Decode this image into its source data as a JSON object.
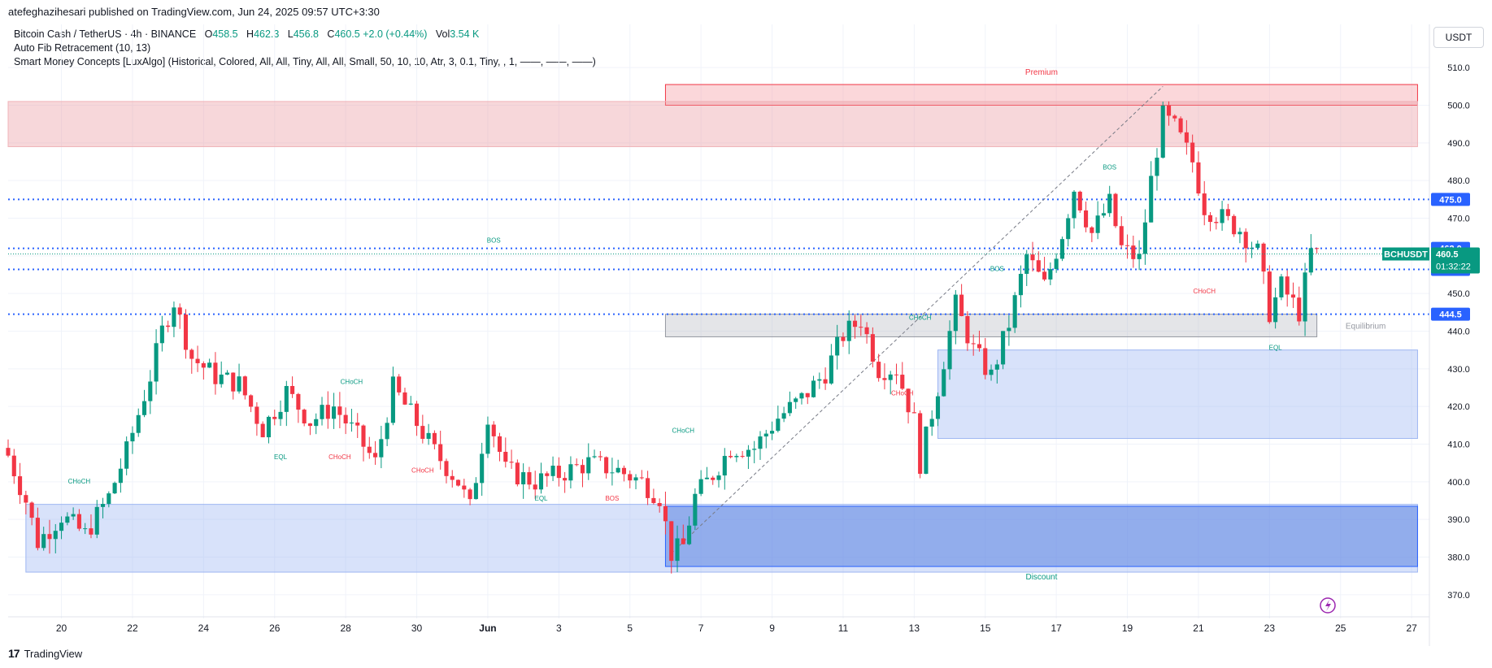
{
  "header": {
    "published_line": "atefeghazihesari published on TradingView.com, Jun 24, 2025 09:57 UTC+3:30"
  },
  "legend": {
    "symbol": "Bitcoin Cash / TetherUS · 4h · BINANCE",
    "open_label": "O",
    "open": "458.5",
    "high_label": "H",
    "high": "462.3",
    "low_label": "L",
    "low": "456.8",
    "close_label": "C",
    "close": "460.5",
    "change": "+2.0 (+0.44%)",
    "volume_label": "Vol",
    "volume": "3.54 K",
    "indicator_1": "Auto Fib Retracement (10, 13)",
    "indicator_2": "Smart Money Concepts [LuxAlgo] (Historical, Colored, All, All, Tiny, All, All, Small, 50, 10, 10, Atr, 3, 0.1, Tiny, , 1, ——, ——, ——)"
  },
  "currency_button": "USDT",
  "brand": {
    "logo": "17",
    "name": "TradingView"
  },
  "colors": {
    "up": "#089981",
    "down": "#f23645",
    "blue_line": "#2962ff",
    "premium_zone": "#f7c9cd",
    "discount_zone": "#c5d3f6",
    "grid": "#f0f3fa"
  },
  "chart_data": {
    "type": "candlestick",
    "symbol": "BCHUSDT",
    "timeframe": "4h",
    "ylim": [
      365,
      515
    ],
    "x_range_days": [
      "2025-05-18T12:00",
      "2025-06-27T12:00"
    ],
    "y_ticks": [
      "370.0",
      "380.0",
      "390.0",
      "400.0",
      "410.0",
      "420.0",
      "430.0",
      "440.0",
      "450.0",
      "460.0",
      "470.0",
      "480.0",
      "490.0",
      "500.0",
      "510.0"
    ],
    "x_ticks": [
      {
        "label": "20",
        "date": "2025-05-20"
      },
      {
        "label": "22",
        "date": "2025-05-22"
      },
      {
        "label": "24",
        "date": "2025-05-24"
      },
      {
        "label": "26",
        "date": "2025-05-26"
      },
      {
        "label": "28",
        "date": "2025-05-28"
      },
      {
        "label": "30",
        "date": "2025-05-30"
      },
      {
        "label": "Jun",
        "date": "2025-06-01"
      },
      {
        "label": "3",
        "date": "2025-06-03"
      },
      {
        "label": "5",
        "date": "2025-06-05"
      },
      {
        "label": "7",
        "date": "2025-06-07"
      },
      {
        "label": "9",
        "date": "2025-06-09"
      },
      {
        "label": "11",
        "date": "2025-06-11"
      },
      {
        "label": "13",
        "date": "2025-06-13"
      },
      {
        "label": "15",
        "date": "2025-06-15"
      },
      {
        "label": "17",
        "date": "2025-06-17"
      },
      {
        "label": "19",
        "date": "2025-06-19"
      },
      {
        "label": "21",
        "date": "2025-06-21"
      },
      {
        "label": "23",
        "date": "2025-06-23"
      },
      {
        "label": "25",
        "date": "2025-06-25"
      },
      {
        "label": "27",
        "date": "2025-06-27"
      }
    ],
    "close_path": [
      {
        "date": "2025-05-18T12:00",
        "close": 407
      },
      {
        "date": "2025-05-19T00:00",
        "close": 395
      },
      {
        "date": "2025-05-19T08:00",
        "close": 384
      },
      {
        "date": "2025-05-20T00:00",
        "close": 391
      },
      {
        "date": "2025-05-20T16:00",
        "close": 386
      },
      {
        "date": "2025-05-21T08:00",
        "close": 396
      },
      {
        "date": "2025-05-21T20:00",
        "close": 408
      },
      {
        "date": "2025-05-22T12:00",
        "close": 428
      },
      {
        "date": "2025-05-22T20:00",
        "close": 440
      },
      {
        "date": "2025-05-23T04:00",
        "close": 448
      },
      {
        "date": "2025-05-23T16:00",
        "close": 433
      },
      {
        "date": "2025-05-24T08:00",
        "close": 428
      },
      {
        "date": "2025-05-25T00:00",
        "close": 426
      },
      {
        "date": "2025-05-25T16:00",
        "close": 414
      },
      {
        "date": "2025-05-26T08:00",
        "close": 424
      },
      {
        "date": "2025-05-27T00:00",
        "close": 416
      },
      {
        "date": "2025-05-27T16:00",
        "close": 420
      },
      {
        "date": "2025-05-28T08:00",
        "close": 412
      },
      {
        "date": "2025-05-28T20:00",
        "close": 405
      },
      {
        "date": "2025-05-29T08:00",
        "close": 425
      },
      {
        "date": "2025-05-29T20:00",
        "close": 418
      },
      {
        "date": "2025-05-30T12:00",
        "close": 408
      },
      {
        "date": "2025-05-31T04:00",
        "close": 400
      },
      {
        "date": "2025-05-31T12:00",
        "close": 393
      },
      {
        "date": "2025-06-01T00:00",
        "close": 418
      },
      {
        "date": "2025-06-01T12:00",
        "close": 403
      },
      {
        "date": "2025-06-02T08:00",
        "close": 400
      },
      {
        "date": "2025-06-03T00:00",
        "close": 402
      },
      {
        "date": "2025-06-03T20:00",
        "close": 405
      },
      {
        "date": "2025-06-04T16:00",
        "close": 403
      },
      {
        "date": "2025-06-05T08:00",
        "close": 400
      },
      {
        "date": "2025-06-05T20:00",
        "close": 396
      },
      {
        "date": "2025-06-06T04:00",
        "close": 381
      },
      {
        "date": "2025-06-06T12:00",
        "close": 383
      },
      {
        "date": "2025-06-06T20:00",
        "close": 396
      },
      {
        "date": "2025-06-07T08:00",
        "close": 402
      },
      {
        "date": "2025-06-07T20:00",
        "close": 409
      },
      {
        "date": "2025-06-08T12:00",
        "close": 409
      },
      {
        "date": "2025-06-09T04:00",
        "close": 417
      },
      {
        "date": "2025-06-09T20:00",
        "close": 422
      },
      {
        "date": "2025-06-10T12:00",
        "close": 429
      },
      {
        "date": "2025-06-11T00:00",
        "close": 439
      },
      {
        "date": "2025-06-11T12:00",
        "close": 443
      },
      {
        "date": "2025-06-12T00:00",
        "close": 430
      },
      {
        "date": "2025-06-12T12:00",
        "close": 430
      },
      {
        "date": "2025-06-13T00:00",
        "close": 416
      },
      {
        "date": "2025-06-13T04:00",
        "close": 405
      },
      {
        "date": "2025-06-13T16:00",
        "close": 425
      },
      {
        "date": "2025-06-14T04:00",
        "close": 447
      },
      {
        "date": "2025-06-14T16:00",
        "close": 435
      },
      {
        "date": "2025-06-15T04:00",
        "close": 428
      },
      {
        "date": "2025-06-15T16:00",
        "close": 442
      },
      {
        "date": "2025-06-16T04:00",
        "close": 460
      },
      {
        "date": "2025-06-16T16:00",
        "close": 452
      },
      {
        "date": "2025-06-17T04:00",
        "close": 466
      },
      {
        "date": "2025-06-17T12:00",
        "close": 478
      },
      {
        "date": "2025-06-18T00:00",
        "close": 466
      },
      {
        "date": "2025-06-18T12:00",
        "close": 474
      },
      {
        "date": "2025-06-18T20:00",
        "close": 462
      },
      {
        "date": "2025-06-19T08:00",
        "close": 459
      },
      {
        "date": "2025-06-19T16:00",
        "close": 480
      },
      {
        "date": "2025-06-20T00:00",
        "close": 497
      },
      {
        "date": "2025-06-20T08:00",
        "close": 494
      },
      {
        "date": "2025-06-20T20:00",
        "close": 485
      },
      {
        "date": "2025-06-21T04:00",
        "close": 473
      },
      {
        "date": "2025-06-21T16:00",
        "close": 470
      },
      {
        "date": "2025-06-22T04:00",
        "close": 467
      },
      {
        "date": "2025-06-22T16:00",
        "close": 461
      },
      {
        "date": "2025-06-23T00:00",
        "close": 445
      },
      {
        "date": "2025-06-23T08:00",
        "close": 452
      },
      {
        "date": "2025-06-23T20:00",
        "close": 445
      },
      {
        "date": "2025-06-24T04:00",
        "close": 461
      },
      {
        "date": "2025-06-24T08:00",
        "close": 460.5
      }
    ],
    "zones": [
      {
        "name": "Premium",
        "from": "2025-06-06T00:00",
        "to": "2025-06-27T04:00",
        "ylow": 500,
        "yhigh": 505.5,
        "kind": "premium"
      },
      {
        "name": "",
        "from": "2025-05-18T12:00",
        "to": "2025-06-27T04:00",
        "ylow": 489,
        "yhigh": 501,
        "kind": "bear_ob"
      },
      {
        "name": "Equilibrium",
        "from": "2025-06-06T00:00",
        "to": "2025-06-24T08:00",
        "ylow": 438.5,
        "yhigh": 444.5,
        "kind": "equilibrium"
      },
      {
        "name": "",
        "from": "2025-06-13T16:00",
        "to": "2025-06-27T04:00",
        "ylow": 411.5,
        "yhigh": 435,
        "kind": "bull_ob"
      },
      {
        "name": "",
        "from": "2025-05-19T00:00",
        "to": "2025-06-27T04:00",
        "ylow": 376,
        "yhigh": 394,
        "kind": "bull_ob"
      },
      {
        "name": "Discount",
        "from": "2025-06-06T00:00",
        "to": "2025-06-27T04:00",
        "ylow": 377.5,
        "yhigh": 393.5,
        "kind": "discount"
      }
    ],
    "levels": [
      {
        "price": 475.0,
        "label": "475.0",
        "style": "dotted-blue"
      },
      {
        "price": 462.0,
        "label": "462.0",
        "style": "dotted-blue"
      },
      {
        "price": 456.4,
        "label": "456.4",
        "style": "dotted-blue"
      },
      {
        "price": 444.5,
        "label": "444.5",
        "style": "dotted-blue"
      }
    ],
    "price_tag": {
      "symbol": "BCHUSDT",
      "price": "460.5",
      "countdown": "01:32:22"
    },
    "structure_labels": [
      {
        "text": "BOS",
        "date": "2025-06-01T04:00",
        "price": 463.5,
        "color": "up"
      },
      {
        "text": "CHoCH",
        "date": "2025-05-20T12:00",
        "price": 399.5,
        "color": "up"
      },
      {
        "text": "CHoCH",
        "date": "2025-05-28T04:00",
        "price": 426,
        "color": "up"
      },
      {
        "text": "CHoCH",
        "date": "2025-06-06T12:00",
        "price": 413,
        "color": "up"
      },
      {
        "text": "CHoCH",
        "date": "2025-06-13T04:00",
        "price": 443,
        "color": "up"
      },
      {
        "text": "BOS",
        "date": "2025-06-18T12:00",
        "price": 483,
        "color": "up"
      },
      {
        "text": "BOS",
        "date": "2025-06-15T08:00",
        "price": 456,
        "color": "up"
      },
      {
        "text": "EQL",
        "date": "2025-05-26T04:00",
        "price": 406,
        "color": "up"
      },
      {
        "text": "EQL",
        "date": "2025-06-02T12:00",
        "price": 395,
        "color": "up"
      },
      {
        "text": "EQL",
        "date": "2025-06-23T04:00",
        "price": 435,
        "color": "up"
      },
      {
        "text": "CHoCH",
        "date": "2025-05-27T20:00",
        "price": 406,
        "color": "down"
      },
      {
        "text": "CHoCH",
        "date": "2025-05-30T04:00",
        "price": 402.5,
        "color": "down"
      },
      {
        "text": "BOS",
        "date": "2025-06-04T12:00",
        "price": 395,
        "color": "down"
      },
      {
        "text": "CHoCH",
        "date": "2025-06-12T16:00",
        "price": 423,
        "color": "down"
      },
      {
        "text": "CHoCH",
        "date": "2025-06-21T04:00",
        "price": 450,
        "color": "down"
      }
    ]
  }
}
